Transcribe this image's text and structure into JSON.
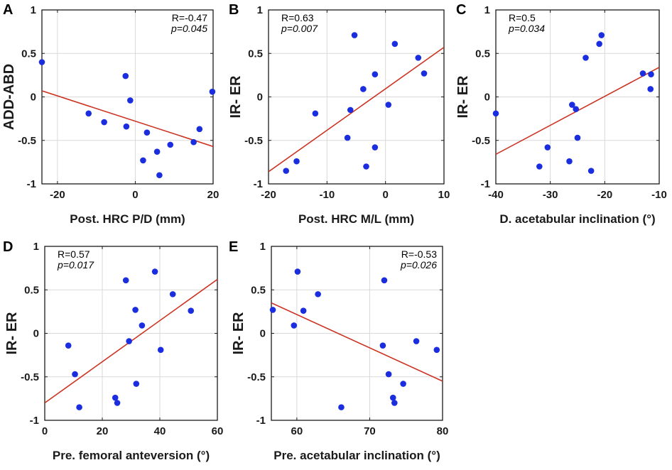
{
  "figure": {
    "marker_color": "#1a2ee0",
    "line_color": "#cc3322",
    "grid_color": "#d9d9d9"
  },
  "chart_data": [
    {
      "type": "scatter",
      "panel_label": "A",
      "xlabel": "Post. HRC P/D (mm)",
      "ylabel": "ADD-ABD",
      "xlim": [
        -24,
        20
      ],
      "ylim": [
        -1,
        1
      ],
      "xticks": [
        -20,
        0,
        20
      ],
      "xtick_labels": [
        "-20",
        "0",
        "20"
      ],
      "yticks": [
        -1,
        -0.5,
        0,
        0.5,
        1
      ],
      "ytick_labels": [
        "-1",
        "-0.5",
        "0",
        "0.5",
        "1"
      ],
      "stats_position": "top-right",
      "r_text": "R=-0.47",
      "p_text": "p=0.045",
      "fit": {
        "x": [
          -24,
          20
        ],
        "y": [
          0.07,
          -0.57
        ]
      },
      "points": [
        {
          "x": -24,
          "y": 0.4
        },
        {
          "x": -12,
          "y": -0.19
        },
        {
          "x": -8,
          "y": -0.29
        },
        {
          "x": -2.5,
          "y": 0.24
        },
        {
          "x": -2.3,
          "y": -0.34
        },
        {
          "x": -1.3,
          "y": -0.04
        },
        {
          "x": 2,
          "y": -0.73
        },
        {
          "x": 3,
          "y": -0.41
        },
        {
          "x": 5.6,
          "y": -0.63
        },
        {
          "x": 6.2,
          "y": -0.9
        },
        {
          "x": 9,
          "y": -0.55
        },
        {
          "x": 15,
          "y": -0.52
        },
        {
          "x": 16.5,
          "y": -0.37
        },
        {
          "x": 19.8,
          "y": 0.06
        }
      ]
    },
    {
      "type": "scatter",
      "panel_label": "B",
      "xlabel": "Post. HRC M/L (mm)",
      "ylabel": "IR- ER",
      "xlim": [
        -20,
        10
      ],
      "ylim": [
        -1,
        1
      ],
      "xticks": [
        -20,
        -10,
        0,
        10
      ],
      "xtick_labels": [
        "-20",
        "-10",
        "0",
        "10"
      ],
      "yticks": [
        -1,
        -0.5,
        0,
        0.5,
        1
      ],
      "ytick_labels": [
        "-1",
        "-0.5",
        "0",
        "0.5",
        "1"
      ],
      "stats_position": "top-left",
      "r_text": "R=0.63",
      "p_text": "p=0.007",
      "fit": {
        "x": [
          -20,
          10
        ],
        "y": [
          -0.86,
          0.57
        ]
      },
      "points": [
        {
          "x": -17,
          "y": -0.85
        },
        {
          "x": -15.2,
          "y": -0.74
        },
        {
          "x": -12,
          "y": -0.19
        },
        {
          "x": -6.5,
          "y": -0.47
        },
        {
          "x": -6,
          "y": -0.15
        },
        {
          "x": -5.3,
          "y": 0.71
        },
        {
          "x": -3.8,
          "y": 0.09
        },
        {
          "x": -3.3,
          "y": -0.8
        },
        {
          "x": -1.8,
          "y": 0.26
        },
        {
          "x": -1.8,
          "y": -0.58
        },
        {
          "x": 0.5,
          "y": -0.09
        },
        {
          "x": 1.6,
          "y": 0.61
        },
        {
          "x": 5.6,
          "y": 0.45
        },
        {
          "x": 6.6,
          "y": 0.27
        }
      ]
    },
    {
      "type": "scatter",
      "panel_label": "C",
      "xlabel": "D. acetabular inclination (°)",
      "ylabel": "IR- ER",
      "xlim": [
        -40,
        -10
      ],
      "ylim": [
        -1,
        1
      ],
      "xticks": [
        -40,
        -30,
        -20,
        -10
      ],
      "xtick_labels": [
        "-40",
        "-30",
        "-20",
        "-10"
      ],
      "yticks": [
        -1,
        -0.5,
        0,
        0.5,
        1
      ],
      "ytick_labels": [
        "-1",
        "-0.5",
        "0",
        "0.5",
        "1"
      ],
      "stats_position": "top-left",
      "r_text": "R=0.5",
      "p_text": "p=0.034",
      "fit": {
        "x": [
          -40,
          -10
        ],
        "y": [
          -0.66,
          0.34
        ]
      },
      "points": [
        {
          "x": -40,
          "y": -0.19
        },
        {
          "x": -32,
          "y": -0.8
        },
        {
          "x": -30.5,
          "y": -0.58
        },
        {
          "x": -26.5,
          "y": -0.74
        },
        {
          "x": -26,
          "y": -0.09
        },
        {
          "x": -25.3,
          "y": -0.14
        },
        {
          "x": -25,
          "y": -0.47
        },
        {
          "x": -23.5,
          "y": 0.45
        },
        {
          "x": -22.5,
          "y": -0.85
        },
        {
          "x": -21,
          "y": 0.61
        },
        {
          "x": -20.6,
          "y": 0.71
        },
        {
          "x": -13,
          "y": 0.27
        },
        {
          "x": -11.5,
          "y": 0.26
        },
        {
          "x": -11.6,
          "y": 0.09
        }
      ]
    },
    {
      "type": "scatter",
      "panel_label": "D",
      "xlabel": "Pre. femoral anteversion (°)",
      "ylabel": "IR- ER",
      "xlim": [
        0,
        60
      ],
      "ylim": [
        -1,
        1
      ],
      "xticks": [
        0,
        20,
        40,
        60
      ],
      "xtick_labels": [
        "0",
        "20",
        "40",
        "60"
      ],
      "yticks": [
        -1,
        -0.5,
        0,
        0.5,
        1
      ],
      "ytick_labels": [
        "-1",
        "-0.5",
        "0",
        "0.5",
        "1"
      ],
      "stats_position": "top-left",
      "r_text": "R=0.57",
      "p_text": "p=0.017",
      "fit": {
        "x": [
          0,
          60
        ],
        "y": [
          -0.8,
          0.62
        ]
      },
      "points": [
        {
          "x": 8.2,
          "y": -0.14
        },
        {
          "x": 10.5,
          "y": -0.47
        },
        {
          "x": 12,
          "y": -0.85
        },
        {
          "x": 24.5,
          "y": -0.74
        },
        {
          "x": 25.2,
          "y": -0.8
        },
        {
          "x": 28.2,
          "y": 0.61
        },
        {
          "x": 29.3,
          "y": -0.09
        },
        {
          "x": 31.5,
          "y": 0.27
        },
        {
          "x": 31.8,
          "y": -0.58
        },
        {
          "x": 33.8,
          "y": 0.09
        },
        {
          "x": 38.3,
          "y": 0.71
        },
        {
          "x": 40.3,
          "y": -0.19
        },
        {
          "x": 44.5,
          "y": 0.45
        },
        {
          "x": 50.8,
          "y": 0.26
        }
      ]
    },
    {
      "type": "scatter",
      "panel_label": "E",
      "xlabel": "Pre. acetabular inclination (°)",
      "ylabel": "IR- ER",
      "xlim": [
        56.5,
        80
      ],
      "ylim": [
        -1,
        1
      ],
      "xticks": [
        60,
        70,
        80
      ],
      "xtick_labels": [
        "60",
        "70",
        "80"
      ],
      "yticks": [
        -1,
        -0.5,
        0,
        0.5,
        1
      ],
      "ytick_labels": [
        "-1",
        "-0.5",
        "0",
        "0.5",
        "1"
      ],
      "stats_position": "top-right",
      "r_text": "R=-0.53",
      "p_text": "p=0.026",
      "fit": {
        "x": [
          56.5,
          80
        ],
        "y": [
          0.35,
          -0.55
        ]
      },
      "points": [
        {
          "x": 56.7,
          "y": 0.27
        },
        {
          "x": 59.6,
          "y": 0.09
        },
        {
          "x": 60.1,
          "y": 0.71
        },
        {
          "x": 60.9,
          "y": 0.26
        },
        {
          "x": 62.9,
          "y": 0.45
        },
        {
          "x": 66.1,
          "y": -0.85
        },
        {
          "x": 71.8,
          "y": -0.14
        },
        {
          "x": 72,
          "y": 0.61
        },
        {
          "x": 72.6,
          "y": -0.47
        },
        {
          "x": 73.2,
          "y": -0.74
        },
        {
          "x": 73.4,
          "y": -0.8
        },
        {
          "x": 74.6,
          "y": -0.58
        },
        {
          "x": 76.4,
          "y": -0.09
        },
        {
          "x": 79.2,
          "y": -0.19
        }
      ]
    }
  ]
}
